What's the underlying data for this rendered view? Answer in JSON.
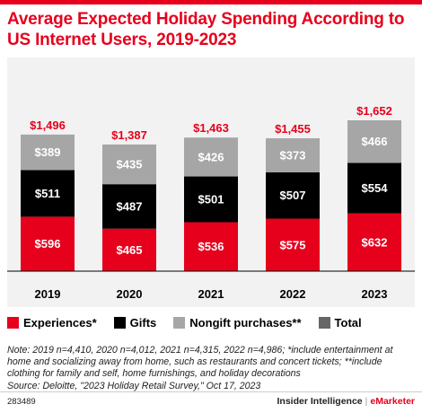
{
  "title": "Average Expected Holiday Spending According to US Internet Users, 2019-2023",
  "colors": {
    "experiences": "#e6001c",
    "gifts": "#000000",
    "nongift": "#a6a6a6",
    "total": "#666666",
    "accent": "#e6001c",
    "chart_bg": "#f2f2f2"
  },
  "chart_data": {
    "type": "bar",
    "stacked": true,
    "title": "Average Expected Holiday Spending According to US Internet Users, 2019-2023",
    "categories": [
      "2019",
      "2020",
      "2021",
      "2022",
      "2023"
    ],
    "series": [
      {
        "name": "Experiences*",
        "values": [
          596,
          465,
          536,
          575,
          632
        ],
        "labels": [
          "$596",
          "$465",
          "$536",
          "$575",
          "$632"
        ]
      },
      {
        "name": "Gifts",
        "values": [
          511,
          487,
          501,
          507,
          554
        ],
        "labels": [
          "$511",
          "$487",
          "$501",
          "$507",
          "$554"
        ]
      },
      {
        "name": "Nongift purchases**",
        "values": [
          389,
          435,
          426,
          373,
          466
        ],
        "labels": [
          "$389",
          "$435",
          "$426",
          "$373",
          "$466"
        ]
      }
    ],
    "totals": {
      "name": "Total",
      "values": [
        1496,
        1387,
        1463,
        1455,
        1652
      ],
      "labels": [
        "$1,496",
        "$1,387",
        "$1,463",
        "$1,455",
        "$1,652"
      ]
    },
    "ylim": [
      0,
      1652
    ],
    "grid": false,
    "legend": "bottom"
  },
  "legend": [
    {
      "label": "Experiences*",
      "color": "#e6001c"
    },
    {
      "label": "Gifts",
      "color": "#000000"
    },
    {
      "label": "Nongift purchases**",
      "color": "#a6a6a6"
    },
    {
      "label": "Total",
      "color": "#666666"
    }
  ],
  "note": "Note: 2019 n=4,410, 2020 n=4,012, 2021 n=4,315, 2022 n=4,986; *include entertainment at home and socializing away from home, such as restaurants and concert tickets; **include clothing for family and self, home furnishings, and holiday decorations",
  "source": "Source: Deloitte, \"2023 Holiday Retail Survey,\" Oct 17, 2023",
  "footer": {
    "id": "283489",
    "brand": "Insider Intelligence",
    "separator": "|",
    "brand2": "eMarketer"
  }
}
